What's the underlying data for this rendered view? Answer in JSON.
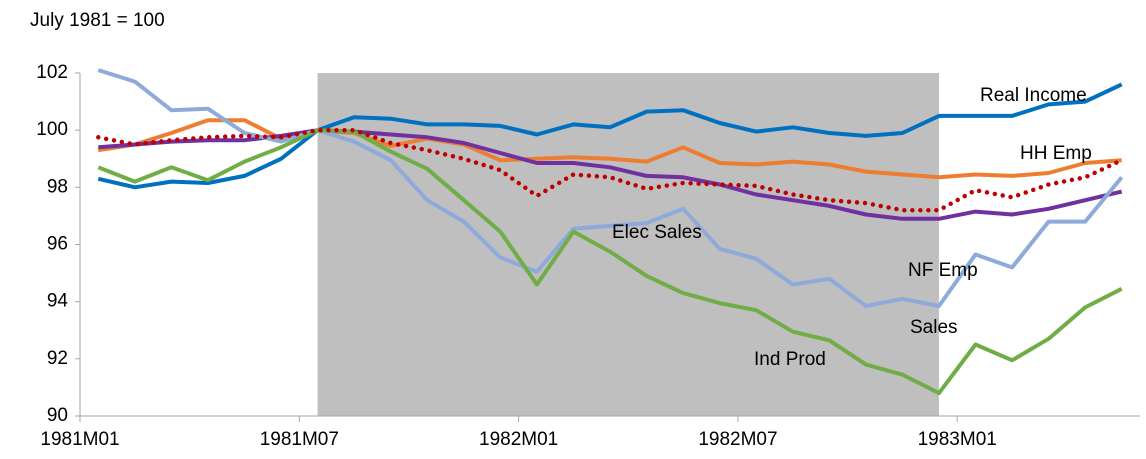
{
  "chart_data": {
    "type": "line",
    "subtitle": "July 1981 = 100",
    "categories": [
      "1981M01",
      null,
      null,
      null,
      null,
      null,
      "1981M07",
      null,
      null,
      null,
      null,
      null,
      "1982M01",
      null,
      null,
      null,
      null,
      null,
      "1982M07",
      null,
      null,
      null,
      null,
      null,
      "1983M01",
      null,
      null,
      null,
      null
    ],
    "shade": {
      "from": 6,
      "to": 23,
      "color": "#bfbfbf"
    },
    "ylim": [
      90,
      102
    ],
    "yticks": [
      90,
      92,
      94,
      96,
      98,
      100,
      102
    ],
    "series": [
      {
        "name": "Real Income",
        "color": "#0070c0",
        "label_color": "#0070c0",
        "style": "solid",
        "values": [
          98.3,
          98.0,
          98.2,
          98.15,
          98.4,
          99.0,
          100.0,
          100.45,
          100.4,
          100.2,
          100.2,
          100.15,
          99.85,
          100.2,
          100.1,
          100.65,
          100.7,
          100.25,
          99.95,
          100.1,
          99.9,
          99.8,
          99.9,
          100.5,
          100.5,
          100.5,
          100.9,
          101.0,
          101.6
        ]
      },
      {
        "name": "HH Emp",
        "color": "#ed7d31",
        "label_color": "#ed7d31",
        "style": "solid",
        "values": [
          99.3,
          99.5,
          99.9,
          100.35,
          100.35,
          99.7,
          100.0,
          99.9,
          99.45,
          99.7,
          99.5,
          98.95,
          99.0,
          99.05,
          99.0,
          98.9,
          99.4,
          98.85,
          98.8,
          98.9,
          98.8,
          98.55,
          98.45,
          98.35,
          98.45,
          98.4,
          98.5,
          98.85,
          98.95
        ]
      },
      {
        "name": "NF Emp",
        "color": "#7030a0",
        "label_color": "#7030a0",
        "style": "solid",
        "values": [
          99.4,
          99.5,
          99.6,
          99.65,
          99.65,
          99.8,
          100.0,
          99.95,
          99.85,
          99.75,
          99.55,
          99.2,
          98.85,
          98.85,
          98.7,
          98.4,
          98.35,
          98.1,
          97.75,
          97.55,
          97.35,
          97.05,
          96.9,
          96.9,
          97.15,
          97.05,
          97.25,
          97.55,
          97.85
        ]
      },
      {
        "name": "Sales",
        "color": "#8eaadb",
        "label_color": "#00b0f0",
        "style": "solid",
        "values": [
          102.1,
          101.7,
          100.7,
          100.75,
          99.9,
          99.6,
          100.0,
          99.6,
          98.95,
          97.55,
          96.8,
          95.55,
          95.05,
          96.55,
          96.65,
          96.75,
          97.25,
          95.85,
          95.5,
          94.6,
          94.8,
          93.85,
          94.1,
          93.85,
          95.65,
          95.2,
          96.8,
          96.8,
          98.35
        ]
      },
      {
        "name": "Ind Prod",
        "color": "#70ad47",
        "label_color": "#548235",
        "style": "solid",
        "values": [
          98.7,
          98.2,
          98.7,
          98.25,
          98.9,
          99.4,
          100.0,
          99.95,
          99.25,
          98.65,
          97.55,
          96.45,
          94.6,
          96.45,
          95.75,
          94.9,
          94.3,
          93.95,
          93.7,
          92.95,
          92.65,
          91.8,
          91.45,
          90.8,
          92.5,
          91.95,
          92.7,
          93.8,
          94.45
        ]
      },
      {
        "name": "Elec Sales",
        "color": "#c00000",
        "label_color": "#c00000",
        "style": "dotted",
        "values": [
          99.75,
          99.5,
          99.65,
          99.75,
          99.8,
          99.75,
          100.0,
          100.0,
          99.55,
          99.3,
          99.0,
          98.6,
          97.7,
          98.45,
          98.35,
          97.95,
          98.15,
          98.1,
          98.05,
          97.75,
          97.55,
          97.45,
          97.2,
          97.2,
          97.9,
          97.65,
          98.1,
          98.35,
          98.95
        ]
      }
    ]
  }
}
